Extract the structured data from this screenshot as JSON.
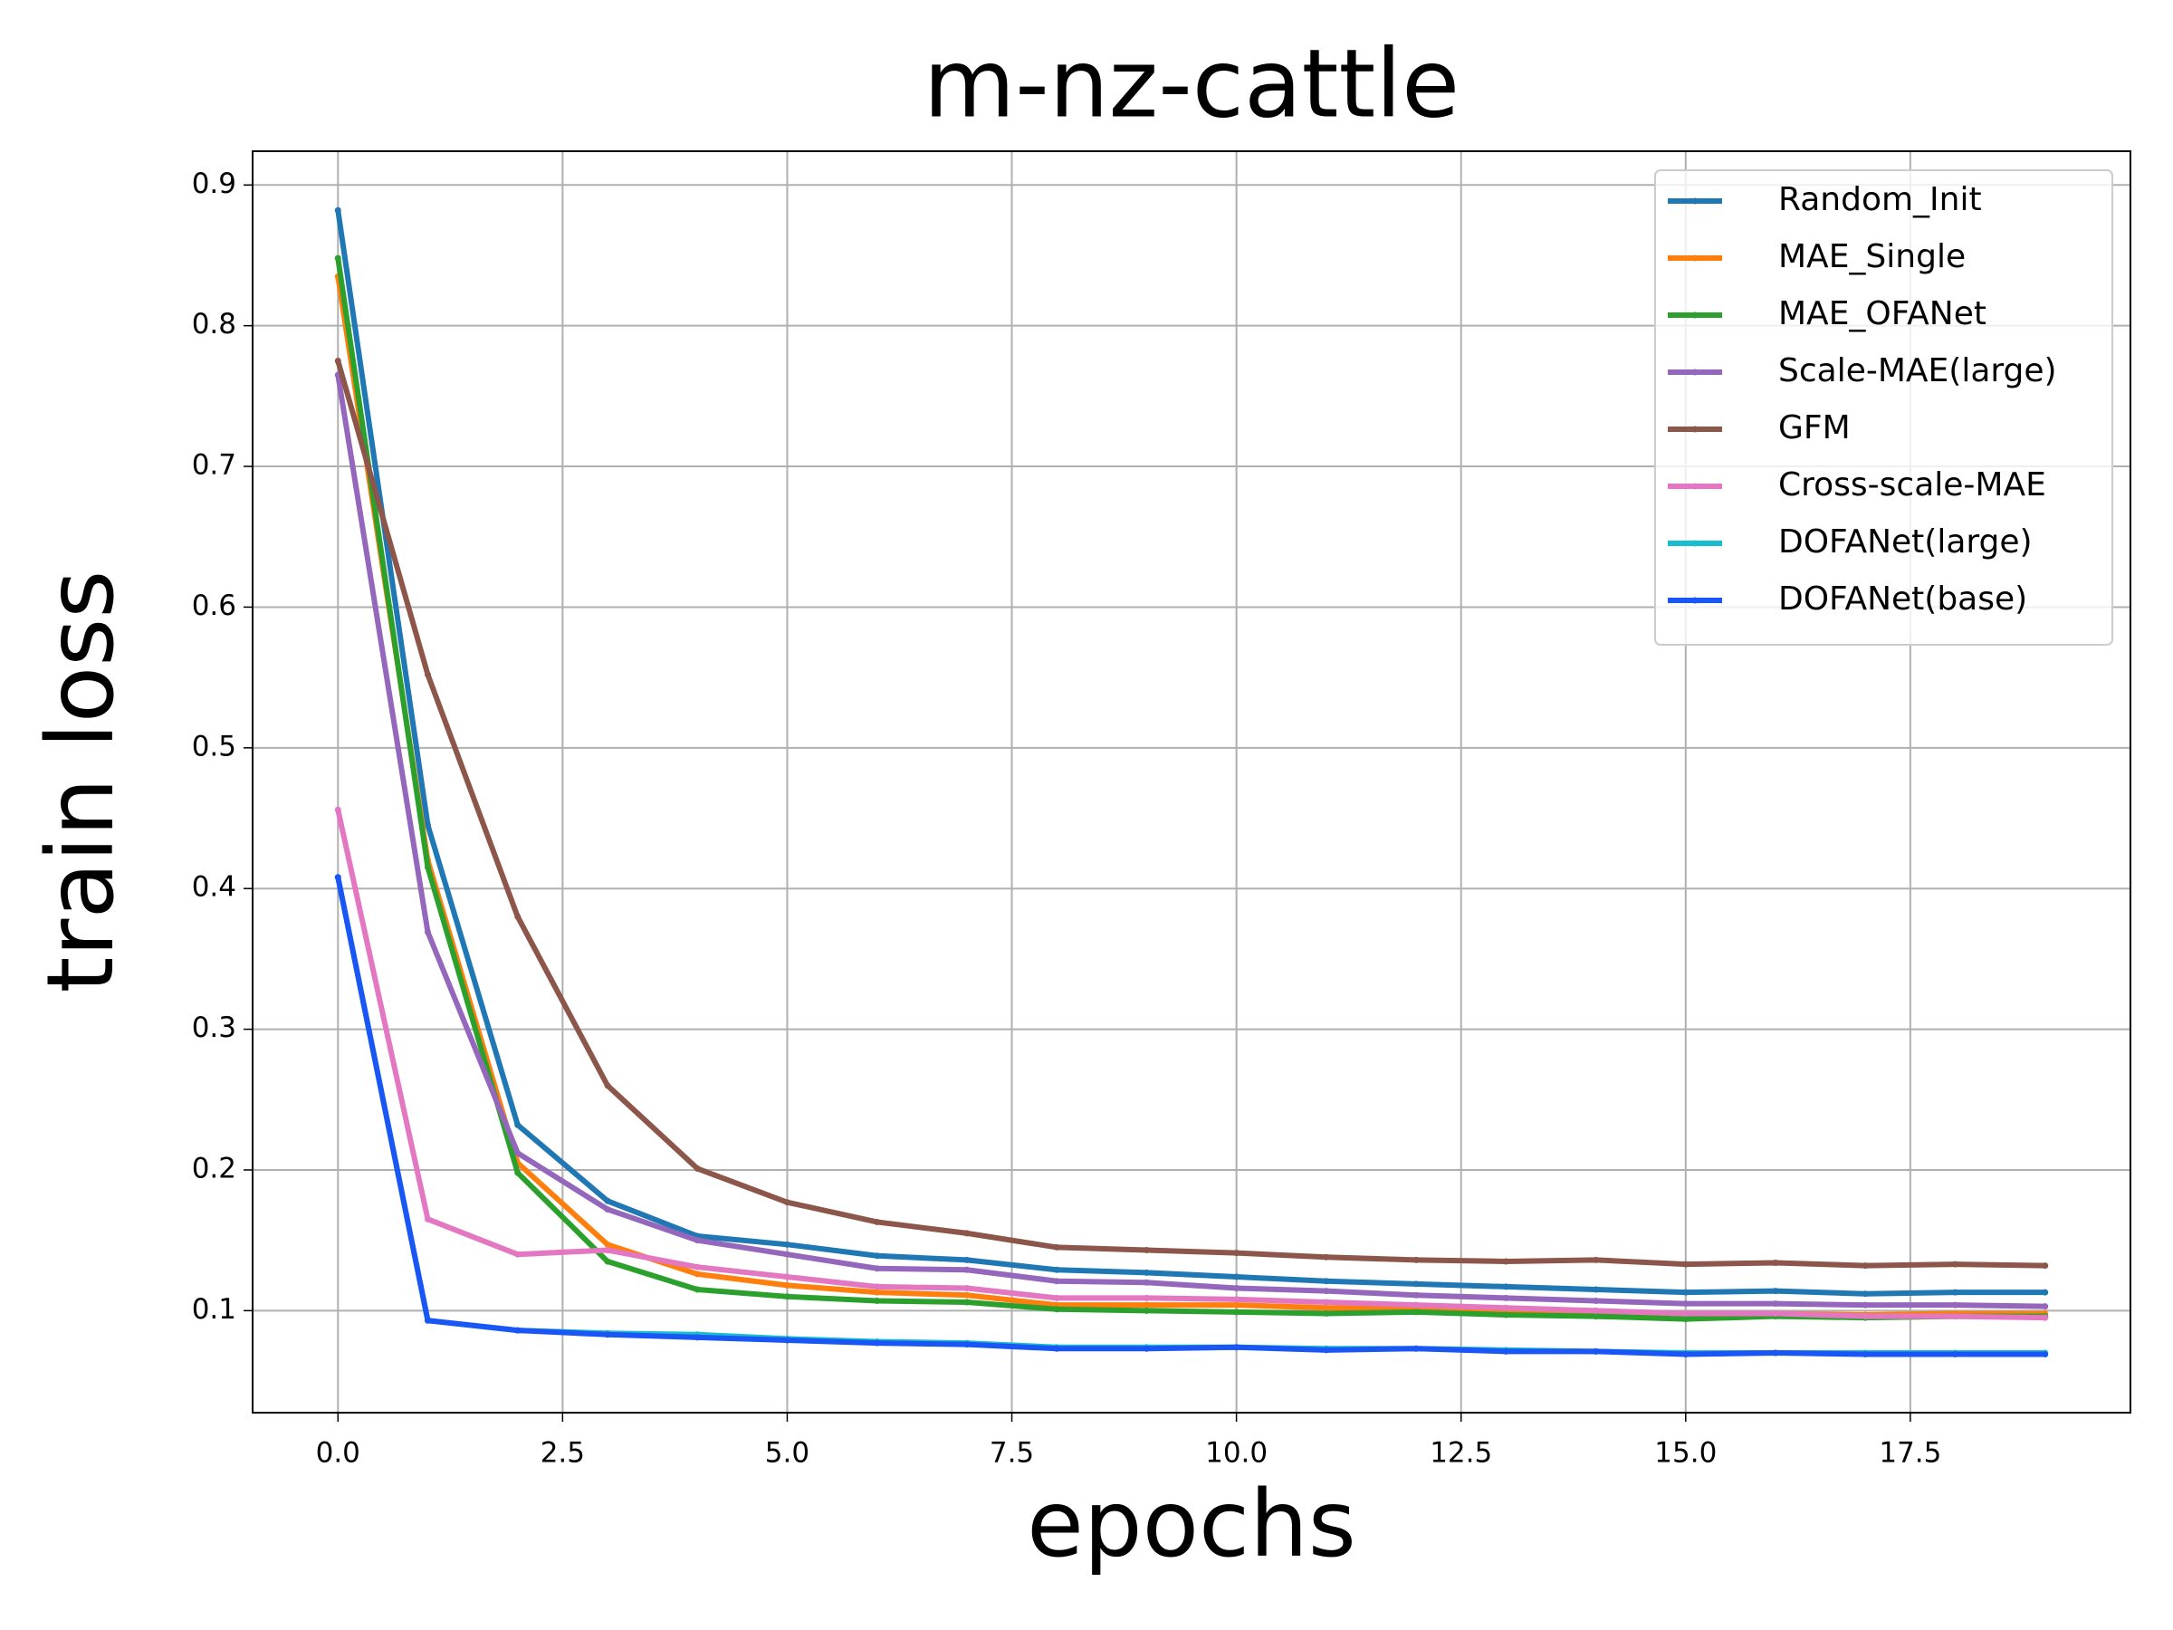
{
  "chart_data": {
    "type": "line",
    "title": "m-nz-cattle",
    "xlabel": "epochs",
    "ylabel": "train loss",
    "x": [
      0,
      1,
      2,
      3,
      4,
      5,
      6,
      7,
      8,
      9,
      10,
      11,
      12,
      13,
      14,
      15,
      16,
      17,
      18,
      19
    ],
    "series": [
      {
        "name": "Random_Init",
        "color": "#1f77b4",
        "values": [
          0.882,
          0.445,
          0.232,
          0.178,
          0.153,
          0.147,
          0.139,
          0.136,
          0.129,
          0.127,
          0.124,
          0.121,
          0.119,
          0.117,
          0.115,
          0.113,
          0.114,
          0.112,
          0.113,
          0.113
        ]
      },
      {
        "name": "MAE_Single",
        "color": "#ff7f0e",
        "values": [
          0.835,
          0.42,
          0.205,
          0.147,
          0.126,
          0.118,
          0.113,
          0.111,
          0.104,
          0.104,
          0.104,
          0.102,
          0.101,
          0.1,
          0.099,
          0.098,
          0.098,
          0.097,
          0.098,
          0.098
        ]
      },
      {
        "name": "MAE_OFANet",
        "color": "#2ca02c",
        "values": [
          0.848,
          0.415,
          0.198,
          0.135,
          0.115,
          0.11,
          0.107,
          0.106,
          0.101,
          0.1,
          0.099,
          0.098,
          0.099,
          0.097,
          0.096,
          0.094,
          0.096,
          0.095,
          0.096,
          0.096
        ]
      },
      {
        "name": "Scale-MAE(large)",
        "color": "#9467bd",
        "values": [
          0.765,
          0.369,
          0.212,
          0.172,
          0.15,
          0.14,
          0.13,
          0.129,
          0.121,
          0.12,
          0.116,
          0.114,
          0.111,
          0.109,
          0.107,
          0.105,
          0.105,
          0.104,
          0.104,
          0.103
        ]
      },
      {
        "name": "GFM",
        "color": "#8c564b",
        "values": [
          0.775,
          0.552,
          0.38,
          0.26,
          0.201,
          0.177,
          0.163,
          0.155,
          0.145,
          0.143,
          0.141,
          0.138,
          0.136,
          0.135,
          0.136,
          0.133,
          0.134,
          0.132,
          0.133,
          0.132
        ]
      },
      {
        "name": "Cross-scale-MAE",
        "color": "#e377c2",
        "values": [
          0.456,
          0.165,
          0.14,
          0.143,
          0.131,
          0.124,
          0.117,
          0.116,
          0.109,
          0.109,
          0.108,
          0.106,
          0.104,
          0.102,
          0.1,
          0.098,
          0.098,
          0.096,
          0.096,
          0.095
        ]
      },
      {
        "name": "DOFANet(large)",
        "color": "#17becf",
        "values": [
          0.408,
          0.093,
          0.086,
          0.084,
          0.083,
          0.08,
          0.078,
          0.077,
          0.074,
          0.074,
          0.074,
          0.073,
          0.073,
          0.072,
          0.071,
          0.07,
          0.07,
          0.07,
          0.07,
          0.07
        ]
      },
      {
        "name": "DOFANet(base)",
        "color": "#1a55f5",
        "values": [
          0.408,
          0.093,
          0.086,
          0.083,
          0.081,
          0.079,
          0.077,
          0.076,
          0.073,
          0.073,
          0.074,
          0.072,
          0.073,
          0.071,
          0.071,
          0.069,
          0.07,
          0.069,
          0.069,
          0.069
        ]
      }
    ],
    "xlim": [
      -0.95,
      19.95
    ],
    "xticks": [
      {
        "value": 0,
        "label": "0.0"
      },
      2.5,
      {
        "value": 5,
        "label": "5.0"
      },
      7.5,
      {
        "value": 10,
        "label": "10.0"
      },
      12.5,
      {
        "value": 15,
        "label": "15.0"
      },
      17.5
    ],
    "ylim": [
      0.0275,
      0.924
    ],
    "yticks": [
      0.1,
      0.2,
      0.3,
      0.4,
      0.5,
      0.6,
      0.7,
      0.8,
      0.9
    ],
    "grid": true,
    "legend": "upper right"
  }
}
